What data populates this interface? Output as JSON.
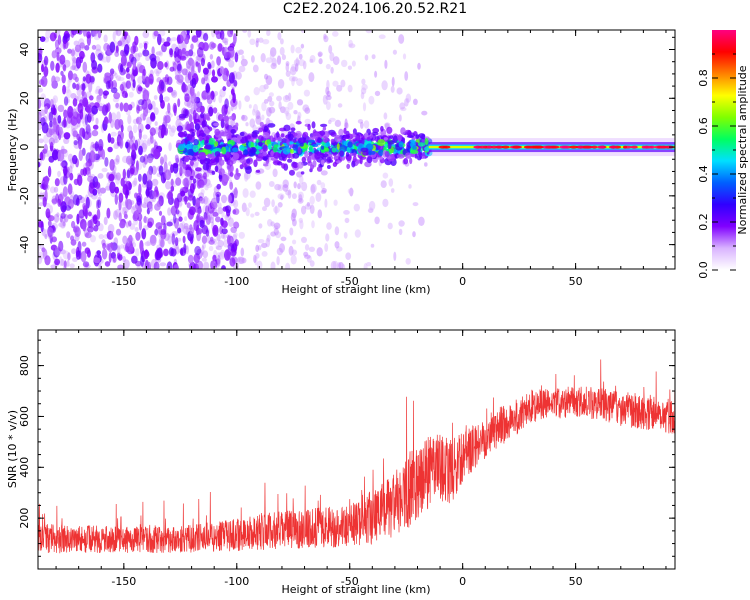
{
  "title": "C2E2.2024.106.20.52.R21",
  "chart_data": [
    {
      "type": "heatmap",
      "xlabel": "Height of straight line (km)",
      "ylabel": "Frequency (Hz)",
      "xlim": [
        -188,
        94
      ],
      "ylim": [
        -50,
        48
      ],
      "x_ticks": [
        -150,
        -100,
        -50,
        0,
        50
      ],
      "y_ticks": [
        -40,
        -20,
        0,
        20,
        40
      ],
      "colorbar": {
        "label": "Normalized spectral amplitude",
        "range": [
          0,
          1
        ],
        "ticks": [
          0.0,
          0.2,
          0.4,
          0.6,
          0.8
        ],
        "colormap": [
          "#ffffff",
          "#d9b3ff",
          "#8000ff",
          "#3000ff",
          "#0060ff",
          "#00e0ff",
          "#00ff60",
          "#80ff00",
          "#ffff00",
          "#ff8000",
          "#ff0000",
          "#ff0080"
        ]
      },
      "features": {
        "noise_region_x": [
          -188,
          -100
        ],
        "tone_center_hz": 0,
        "tone_spread_region_x": [
          -125,
          -15
        ],
        "steady_tone_x": [
          -15,
          94
        ]
      }
    },
    {
      "type": "line",
      "xlabel": "Height of straight line (km)",
      "ylabel": "SNR (10 * v/v)",
      "xlim": [
        -188,
        94
      ],
      "ylim": [
        0,
        940
      ],
      "x_ticks": [
        -150,
        -100,
        -50,
        0,
        50
      ],
      "y_ticks": [
        200,
        400,
        600,
        800
      ],
      "series": [
        {
          "color": "#ee3333",
          "envelope_x": [
            -188,
            -150,
            -130,
            -110,
            -90,
            -70,
            -50,
            -40,
            -30,
            -25,
            -20,
            -15,
            -10,
            -5,
            0,
            5,
            10,
            15,
            20,
            25,
            30,
            40,
            50,
            60,
            70,
            80,
            94
          ],
          "envelope_mean": [
            120,
            115,
            115,
            125,
            145,
            160,
            170,
            200,
            250,
            300,
            350,
            380,
            400,
            380,
            440,
            480,
            520,
            550,
            580,
            600,
            640,
            650,
            660,
            650,
            630,
            620,
            600
          ],
          "envelope_spread": [
            90,
            80,
            80,
            90,
            110,
            120,
            130,
            170,
            200,
            230,
            230,
            220,
            200,
            200,
            150,
            140,
            130,
            120,
            120,
            110,
            100,
            95,
            95,
            100,
            105,
            110,
            110
          ]
        }
      ]
    }
  ]
}
